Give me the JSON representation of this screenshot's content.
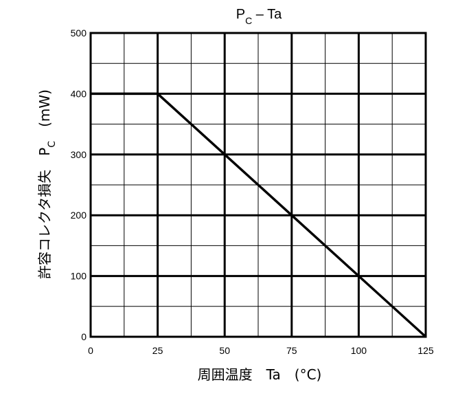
{
  "chart_data": {
    "type": "line",
    "title": "P",
    "title_subscript": "C",
    "title_suffix": " – Ta",
    "xlabel": "周囲温度　Ta　(°C)",
    "ylabel_main": "許容コレクタ損失　P",
    "ylabel_subscript": "C",
    "ylabel_unit": "　(mW)",
    "xlim": [
      0,
      125
    ],
    "ylim": [
      0,
      500
    ],
    "x_ticks": [
      0,
      25,
      50,
      75,
      100,
      125
    ],
    "y_ticks": [
      0,
      100,
      200,
      300,
      400,
      500
    ],
    "x_tick_labels": [
      "0",
      "25",
      "50",
      "75",
      "100",
      "125"
    ],
    "y_tick_labels": [
      "0",
      "100",
      "200",
      "300",
      "400",
      "500"
    ],
    "grid": true,
    "grid_minor_divisions": 2,
    "series": [
      {
        "x": [
          0,
          25,
          125
        ],
        "y": [
          400,
          400,
          0
        ],
        "color": "#000000"
      }
    ]
  }
}
